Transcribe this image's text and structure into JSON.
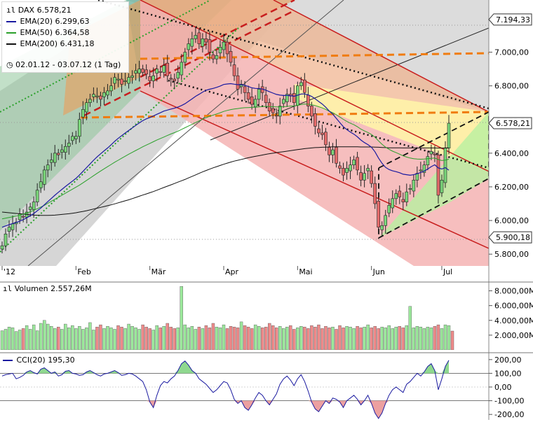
{
  "chart_data": [
    {
      "type": "candlestick",
      "title": "DAX",
      "last_value_label": "6.578,21",
      "period_label": "02.01.12 - 03.07.12 (1 Tag)",
      "ylim": [
        5730,
        7310
      ],
      "y_ticks": [
        "7.000,00",
        "6.800,00",
        "6.400,00",
        "6.200,00",
        "6.000,00",
        "5.800,00"
      ],
      "y_tick_values": [
        7000,
        6800,
        6400,
        6200,
        6000,
        5800
      ],
      "price_markers": [
        {
          "label": "7.194,33",
          "value": 7194.33,
          "color": "#333333"
        },
        {
          "label": "6.578,21",
          "value": 6578.21,
          "color": "#333333"
        },
        {
          "label": "5.900,18",
          "value": 5900.18,
          "color": "#333333"
        }
      ],
      "x_month_labels": [
        "'12",
        "Feb",
        "Mär",
        "Apr",
        "Mai",
        "Jun",
        "Jul"
      ],
      "x_month_index": [
        0,
        21,
        42,
        63,
        84,
        105,
        125
      ],
      "indicators": [
        {
          "name": "EMA(20)",
          "value_label": "6.299,63",
          "color": "#1a1aa0"
        },
        {
          "name": "EMA(50)",
          "value_label": "6.364,58",
          "color": "#2aa02a"
        },
        {
          "name": "EMA(200)",
          "value_label": "6.431,18",
          "color": "#111111"
        }
      ],
      "closes": [
        5850,
        5920,
        5960,
        5980,
        5990,
        6040,
        6020,
        6050,
        6080,
        6110,
        6180,
        6230,
        6300,
        6330,
        6360,
        6400,
        6390,
        6420,
        6440,
        6460,
        6500,
        6500,
        6600,
        6660,
        6700,
        6720,
        6750,
        6740,
        6720,
        6760,
        6770,
        6800,
        6850,
        6840,
        6810,
        6830,
        6850,
        6860,
        6890,
        6900,
        6880,
        6870,
        6830,
        6860,
        6900,
        6880,
        6920,
        6860,
        6840,
        6830,
        6880,
        6940,
        7000,
        7050,
        7080,
        7100,
        7050,
        7080,
        7060,
        7000,
        6960,
        6980,
        7030,
        7060,
        6990,
        6940,
        6860,
        6780,
        6810,
        6760,
        6720,
        6690,
        6720,
        6780,
        6760,
        6700,
        6650,
        6640,
        6620,
        6680,
        6720,
        6750,
        6740,
        6700,
        6800,
        6820,
        6760,
        6680,
        6620,
        6560,
        6520,
        6510,
        6450,
        6390,
        6420,
        6340,
        6310,
        6270,
        6310,
        6330,
        6360,
        6300,
        6240,
        6280,
        6310,
        6220,
        6100,
        5960,
        5970,
        6030,
        6090,
        6130,
        6160,
        6140,
        6110,
        6170,
        6190,
        6240,
        6280,
        6300,
        6330,
        6380,
        6410,
        6390,
        6150,
        6240,
        6430,
        6578
      ],
      "ema20": [
        5960,
        5968,
        5975,
        5982,
        5988,
        5996,
        6005,
        6016,
        6028,
        6041,
        6058,
        6074,
        6093,
        6112,
        6131,
        6150,
        6168,
        6185,
        6202,
        6218,
        6234,
        6250,
        6270,
        6292,
        6314,
        6336,
        6358,
        6378,
        6396,
        6414,
        6431,
        6450,
        6470,
        6488,
        6504,
        6520,
        6535,
        6550,
        6565,
        6580,
        6593,
        6604,
        6612,
        6621,
        6631,
        6640,
        6650,
        6656,
        6662,
        6667,
        6674,
        6683,
        6694,
        6708,
        6723,
        6738,
        6750,
        6763,
        6774,
        6780,
        6785,
        6791,
        6799,
        6808,
        6811,
        6813,
        6810,
        6807,
        6807,
        6803,
        6796,
        6788,
        6785,
        6784,
        6781,
        6774,
        6765,
        6757,
        6749,
        6745,
        6743,
        6743,
        6742,
        6738,
        6744,
        6751,
        6752,
        6746,
        6737,
        6723,
        6707,
        6692,
        6673,
        6650,
        6632,
        6607,
        6582,
        6558,
        6540,
        6525,
        6513,
        6497,
        6478,
        6463,
        6451,
        6435,
        6408,
        6371,
        6340,
        6316,
        6303,
        6295,
        6290,
        6284,
        6275,
        6272,
        6269,
        6272,
        6278,
        6285,
        6294,
        6306,
        6320,
        6331,
        6312,
        6306,
        6314,
        6299
      ],
      "ema50": [
        6010,
        6014,
        6018,
        6022,
        6026,
        6032,
        6038,
        6044,
        6052,
        6060,
        6070,
        6080,
        6090,
        6102,
        6114,
        6126,
        6138,
        6150,
        6162,
        6174,
        6186,
        6198,
        6210,
        6224,
        6238,
        6252,
        6266,
        6280,
        6294,
        6307,
        6320,
        6333,
        6346,
        6358,
        6370,
        6382,
        6394,
        6405,
        6416,
        6427,
        6438,
        6448,
        6458,
        6468,
        6478,
        6487,
        6496,
        6505,
        6514,
        6522,
        6531,
        6541,
        6551,
        6561,
        6571,
        6582,
        6592,
        6602,
        6611,
        6619,
        6626,
        6633,
        6640,
        6648,
        6654,
        6659,
        6662,
        6665,
        6668,
        6670,
        6671,
        6672,
        6673,
        6675,
        6677,
        6678,
        6677,
        6676,
        6675,
        6675,
        6676,
        6678,
        6680,
        6680,
        6684,
        6689,
        6692,
        6691,
        6688,
        6683,
        6676,
        6669,
        6660,
        6649,
        6640,
        6628,
        6615,
        6601,
        6589,
        6578,
        6569,
        6557,
        6543,
        6532,
        6523,
        6511,
        6495,
        6473,
        6453,
        6436,
        6423,
        6412,
        6403,
        6394,
        6384,
        6377,
        6371,
        6367,
        6365,
        6364,
        6365,
        6367,
        6369,
        6371,
        6362,
        6356,
        6359,
        6364
      ],
      "ema200": [
        6050,
        6048,
        6046,
        6044,
        6042,
        6040,
        6038,
        6036,
        6034,
        6032,
        6031,
        6030,
        6030,
        6030,
        6031,
        6032,
        6034,
        6036,
        6038,
        6040,
        6043,
        6046,
        6050,
        6054,
        6058,
        6063,
        6068,
        6073,
        6078,
        6083,
        6088,
        6093,
        6099,
        6105,
        6111,
        6117,
        6123,
        6130,
        6137,
        6144,
        6151,
        6158,
        6165,
        6172,
        6180,
        6188,
        6196,
        6204,
        6212,
        6220,
        6228,
        6236,
        6244,
        6253,
        6262,
        6271,
        6280,
        6289,
        6297,
        6305,
        6313,
        6320,
        6327,
        6334,
        6341,
        6347,
        6353,
        6358,
        6363,
        6368,
        6373,
        6377,
        6381,
        6385,
        6389,
        6393,
        6397,
        6400,
        6403,
        6406,
        6409,
        6412,
        6415,
        6418,
        6421,
        6424,
        6427,
        6429,
        6431,
        6433,
        6434,
        6435,
        6436,
        6437,
        6438,
        6438,
        6438,
        6438,
        6438,
        6438,
        6438,
        6438,
        6437,
        6437,
        6437,
        6437,
        6436,
        6435,
        6434,
        6433,
        6432,
        6432,
        6432,
        6432,
        6431,
        6431,
        6431,
        6431,
        6431,
        6431,
        6431,
        6431,
        6431,
        6431,
        6430,
        6430,
        6431,
        6431
      ]
    },
    {
      "type": "bar",
      "title": "Volumen",
      "value_label": "2.557,26M",
      "ylim": [
        0,
        9000
      ],
      "y_ticks": [
        "8.000,00M",
        "6.000,00M",
        "4.000,00M",
        "2.000,00M"
      ],
      "y_tick_values": [
        8000,
        6000,
        4000,
        2000
      ],
      "volumes": [
        2600,
        2800,
        3100,
        3000,
        2500,
        2700,
        2900,
        3300,
        2800,
        3400,
        2600,
        3600,
        4000,
        3500,
        3200,
        2900,
        3100,
        2800,
        3500,
        3000,
        3300,
        2900,
        3200,
        2800,
        3000,
        3700,
        2700,
        3100,
        3400,
        2900,
        3200,
        3000,
        2800,
        3300,
        3100,
        2900,
        3500,
        3200,
        3000,
        2800,
        3400,
        3100,
        2900,
        2700,
        3300,
        3000,
        3200,
        3600,
        3100,
        2900,
        3000,
        8600,
        3400,
        3000,
        3200,
        2800,
        3100,
        2900,
        3300,
        3000,
        3600,
        3100,
        3000,
        3400,
        2900,
        3200,
        3100,
        3000,
        3800,
        3300,
        3100,
        2900,
        3400,
        3200,
        3000,
        3100,
        3600,
        3300,
        3000,
        3200,
        2900,
        3100,
        3300,
        2800,
        3000,
        3200,
        3100,
        2900,
        3300,
        3100,
        3400,
        2900,
        3200,
        3000,
        3100,
        2800,
        3300,
        3000,
        3200,
        3100,
        2900,
        3200,
        3000,
        3100,
        3400,
        3000,
        3200,
        2900,
        3100,
        3000,
        3300,
        2900,
        3100,
        3200,
        3000,
        3300,
        5900,
        3000,
        3200,
        3100,
        2900,
        3100,
        3000,
        3200,
        3400,
        2900,
        3400,
        3300,
        2557
      ]
    },
    {
      "type": "line",
      "title": "CCI(20)",
      "value_label": "195,30",
      "ylim": [
        -240,
        240
      ],
      "y_ticks": [
        "200,00",
        "100,00",
        "0,00",
        "-100,00",
        "-200,00"
      ],
      "y_tick_values": [
        200,
        100,
        0,
        -100,
        -200
      ],
      "cci": [
        80,
        90,
        95,
        100,
        60,
        70,
        85,
        110,
        120,
        105,
        95,
        130,
        140,
        120,
        100,
        110,
        80,
        90,
        115,
        120,
        100,
        95,
        85,
        90,
        110,
        120,
        105,
        90,
        80,
        95,
        100,
        110,
        120,
        105,
        85,
        90,
        100,
        95,
        80,
        60,
        40,
        -20,
        -110,
        -150,
        -60,
        10,
        40,
        30,
        60,
        80,
        120,
        170,
        190,
        160,
        120,
        100,
        60,
        40,
        20,
        -10,
        -40,
        -20,
        10,
        40,
        30,
        -20,
        -90,
        -120,
        -100,
        -150,
        -170,
        -130,
        -80,
        -40,
        -60,
        -100,
        -130,
        -90,
        -50,
        20,
        60,
        80,
        50,
        10,
        60,
        90,
        40,
        -30,
        -110,
        -160,
        -180,
        -140,
        -100,
        -120,
        -80,
        -90,
        -110,
        -150,
        -100,
        -80,
        -60,
        -90,
        -130,
        -100,
        -60,
        -120,
        -190,
        -230,
        -190,
        -120,
        -60,
        -20,
        0,
        -20,
        -40,
        20,
        40,
        70,
        100,
        80,
        110,
        150,
        170,
        120,
        -20,
        60,
        150,
        195
      ]
    }
  ]
}
